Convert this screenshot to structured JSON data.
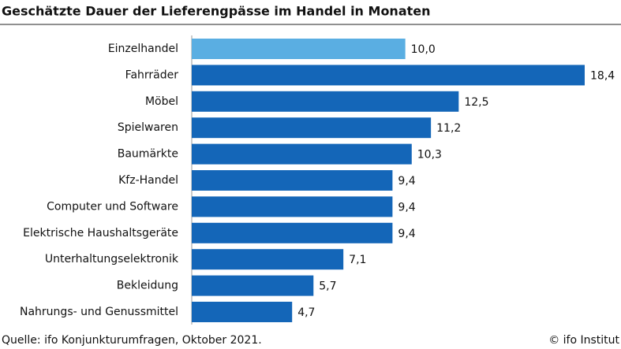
{
  "chart_data": {
    "type": "bar",
    "orientation": "horizontal",
    "title": "Geschätzte Dauer der Lieferengpässe im Handel in Monaten",
    "categories": [
      "Einzelhandel",
      "Fahrräder",
      "Möbel",
      "Spielwaren",
      "Baumärkte",
      "Kfz-Handel",
      "Computer und Software",
      "Elektrische Haushaltsgeräte",
      "Unterhaltungselektronik",
      "Bekleidung",
      "Nahrungs- und Genussmittel"
    ],
    "values": [
      10.0,
      18.4,
      12.5,
      11.2,
      10.3,
      9.4,
      9.4,
      9.4,
      7.1,
      5.7,
      4.7
    ],
    "value_labels": [
      "10,0",
      "18,4",
      "12,5",
      "11,2",
      "10,3",
      "9,4",
      "9,4",
      "9,4",
      "7,1",
      "5,7",
      "4,7"
    ],
    "colors": [
      "#5aaee2",
      "#1466b8",
      "#1466b8",
      "#1466b8",
      "#1466b8",
      "#1466b8",
      "#1466b8",
      "#1466b8",
      "#1466b8",
      "#1466b8",
      "#1466b8"
    ],
    "source": "Quelle: ifo Konjunkturumfragen, Oktober 2021.",
    "copyright": "© ifo Institut"
  }
}
